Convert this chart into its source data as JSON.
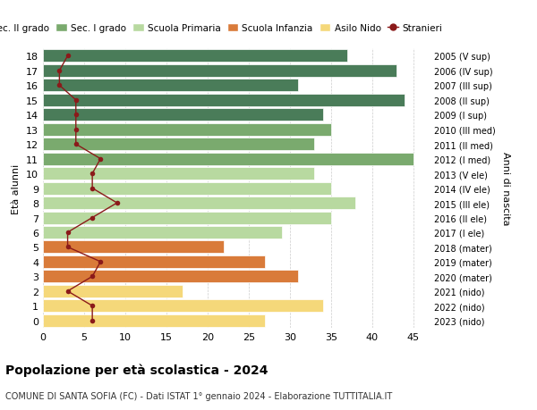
{
  "ages": [
    0,
    1,
    2,
    3,
    4,
    5,
    6,
    7,
    8,
    9,
    10,
    11,
    12,
    13,
    14,
    15,
    16,
    17,
    18
  ],
  "years": [
    "2023 (nido)",
    "2022 (nido)",
    "2021 (nido)",
    "2020 (mater)",
    "2019 (mater)",
    "2018 (mater)",
    "2017 (I ele)",
    "2016 (II ele)",
    "2015 (III ele)",
    "2014 (IV ele)",
    "2013 (V ele)",
    "2012 (I med)",
    "2011 (II med)",
    "2010 (III med)",
    "2009 (I sup)",
    "2008 (II sup)",
    "2007 (III sup)",
    "2006 (IV sup)",
    "2005 (V sup)"
  ],
  "bar_values": [
    27,
    34,
    17,
    31,
    27,
    22,
    29,
    35,
    38,
    35,
    33,
    45,
    33,
    35,
    34,
    44,
    31,
    43,
    37
  ],
  "bar_colors": [
    "#f5d87a",
    "#f5d87a",
    "#f5d87a",
    "#d97b3a",
    "#d97b3a",
    "#d97b3a",
    "#b8d9a0",
    "#b8d9a0",
    "#b8d9a0",
    "#b8d9a0",
    "#b8d9a0",
    "#7aaa6e",
    "#7aaa6e",
    "#7aaa6e",
    "#4a7c59",
    "#4a7c59",
    "#4a7c59",
    "#4a7c59",
    "#4a7c59"
  ],
  "stranieri_values": [
    6,
    6,
    3,
    6,
    7,
    3,
    3,
    6,
    9,
    6,
    6,
    7,
    4,
    4,
    4,
    4,
    2,
    2,
    3
  ],
  "stranieri_color": "#8b1a1a",
  "title": "Popolazione per età scolastica - 2024",
  "subtitle": "COMUNE DI SANTA SOFIA (FC) - Dati ISTAT 1° gennaio 2024 - Elaborazione TUTTITALIA.IT",
  "ylabel_left": "Età alunni",
  "ylabel_right": "Anni di nascita",
  "xlim": [
    0,
    47
  ],
  "xticks": [
    0,
    5,
    10,
    15,
    20,
    25,
    30,
    35,
    40,
    45
  ],
  "legend_labels": [
    "Sec. II grado",
    "Sec. I grado",
    "Scuola Primaria",
    "Scuola Infanzia",
    "Asilo Nido",
    "Stranieri"
  ],
  "legend_colors": [
    "#4a7c59",
    "#7aaa6e",
    "#b8d9a0",
    "#d97b3a",
    "#f5d87a",
    "#8b1a1a"
  ],
  "background_color": "#ffffff",
  "grid_color": "#cccccc"
}
